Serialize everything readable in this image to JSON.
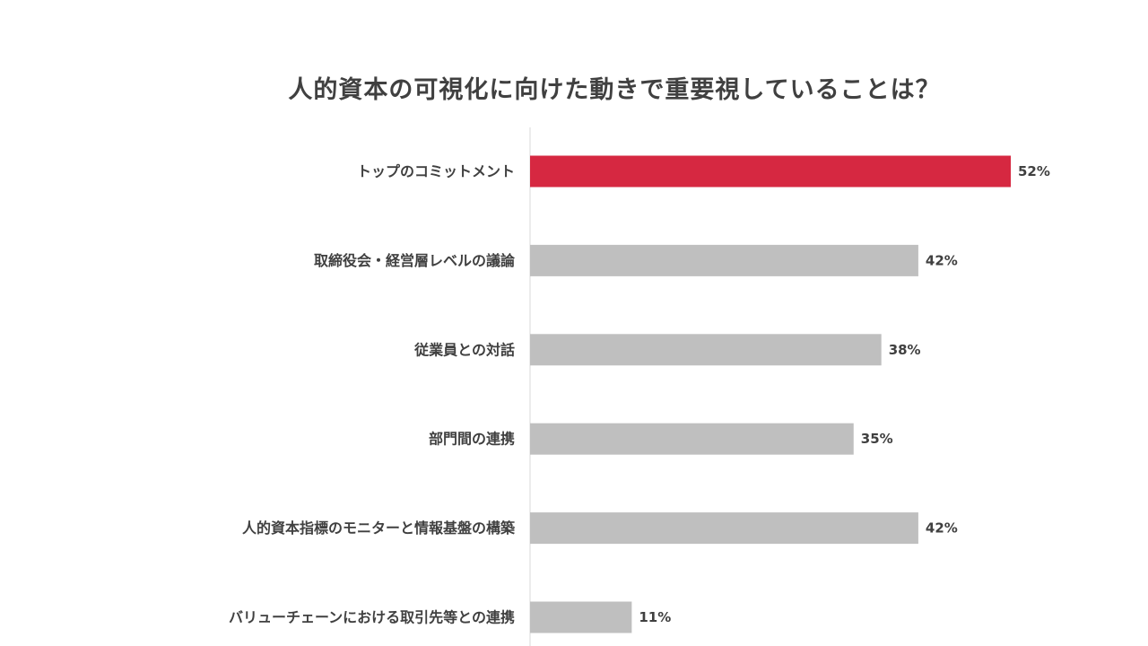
{
  "chart_data": {
    "type": "bar",
    "orientation": "horizontal",
    "title": "人的資本の可視化に向けた動きで重要視していることは？",
    "categories": [
      "トップのコミットメント",
      "取締役会・経営層レベルの議論",
      "従業員との対話",
      "部門間の連携",
      "人的資本指標のモニターと情報基盤の構築",
      "バリューチェーンにおける取引先等との連携"
    ],
    "values": [
      52,
      42,
      38,
      35,
      42,
      11
    ],
    "value_labels": [
      "52%",
      "42%",
      "38%",
      "35%",
      "42%",
      "11%"
    ],
    "unit": "%",
    "highlight_index": 0,
    "colors": {
      "highlight": "#d62841",
      "default": "#bfbfbf",
      "text": "#404040",
      "axis": "#d9d9d9"
    },
    "xlim": [
      0,
      100
    ],
    "grid": false,
    "legend": "none"
  }
}
